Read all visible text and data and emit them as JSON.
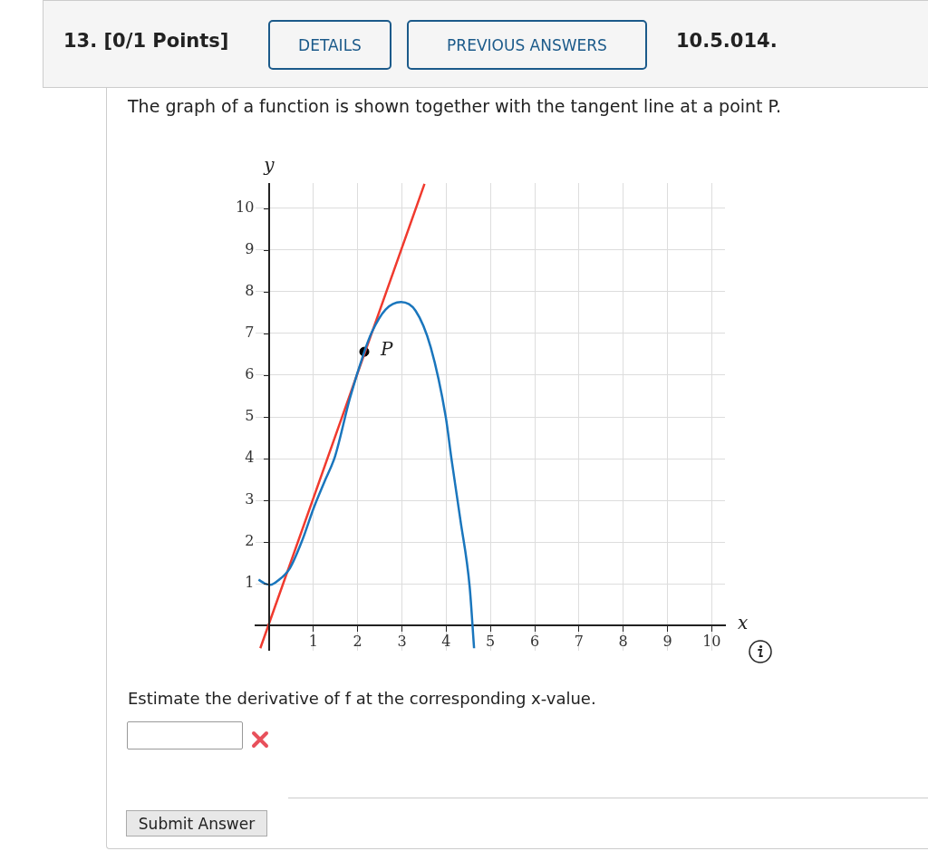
{
  "chart_data": {
    "type": "line",
    "title": "The graph of a function is shown together with the tangent line at a point P.",
    "xlabel": "x",
    "ylabel": "y",
    "xlim": [
      -0.3,
      10.3
    ],
    "ylim": [
      -0.6,
      10.6
    ],
    "xticks": [
      1,
      2,
      3,
      4,
      5,
      6,
      7,
      8,
      9,
      10
    ],
    "yticks": [
      1,
      2,
      3,
      4,
      5,
      6,
      7,
      8,
      9,
      10
    ],
    "grid": true,
    "marker": "none",
    "line_style": "solid",
    "series": [
      {
        "color": "#1a76bd",
        "x": [
          -0.24,
          -0.1,
          0.03,
          0.2,
          0.47,
          0.75,
          1.01,
          1.25,
          1.49,
          1.82,
          2.15,
          2.32,
          2.63,
          2.98,
          3.31,
          3.65,
          3.99,
          4.12,
          4.32,
          4.53,
          4.63
        ],
        "values": [
          1.1,
          1.01,
          0.98,
          1.08,
          1.38,
          2.05,
          2.83,
          3.45,
          4.06,
          5.43,
          6.56,
          7.03,
          7.57,
          7.75,
          7.54,
          6.67,
          5.0,
          3.99,
          2.54,
          0.94,
          -0.54
        ]
      },
      {
        "color": "#f03a2e",
        "x": [
          -0.2,
          3.51
        ],
        "values": [
          -0.54,
          10.58
        ]
      },
      {
        "type": "scatter",
        "color": "#000000",
        "marker": "circle",
        "x": [
          2.15
        ],
        "values": [
          6.56
        ]
      }
    ],
    "annotations": [
      {
        "text": "P",
        "x": 2.15,
        "y": 6.56
      },
      "13. [0/1 Points]",
      "DETAILS",
      "PREVIOUS ANSWERS",
      "10.5.014.",
      "Estimate the derivative of f at the corresponding x-value.",
      "Submit Answer"
    ]
  }
}
